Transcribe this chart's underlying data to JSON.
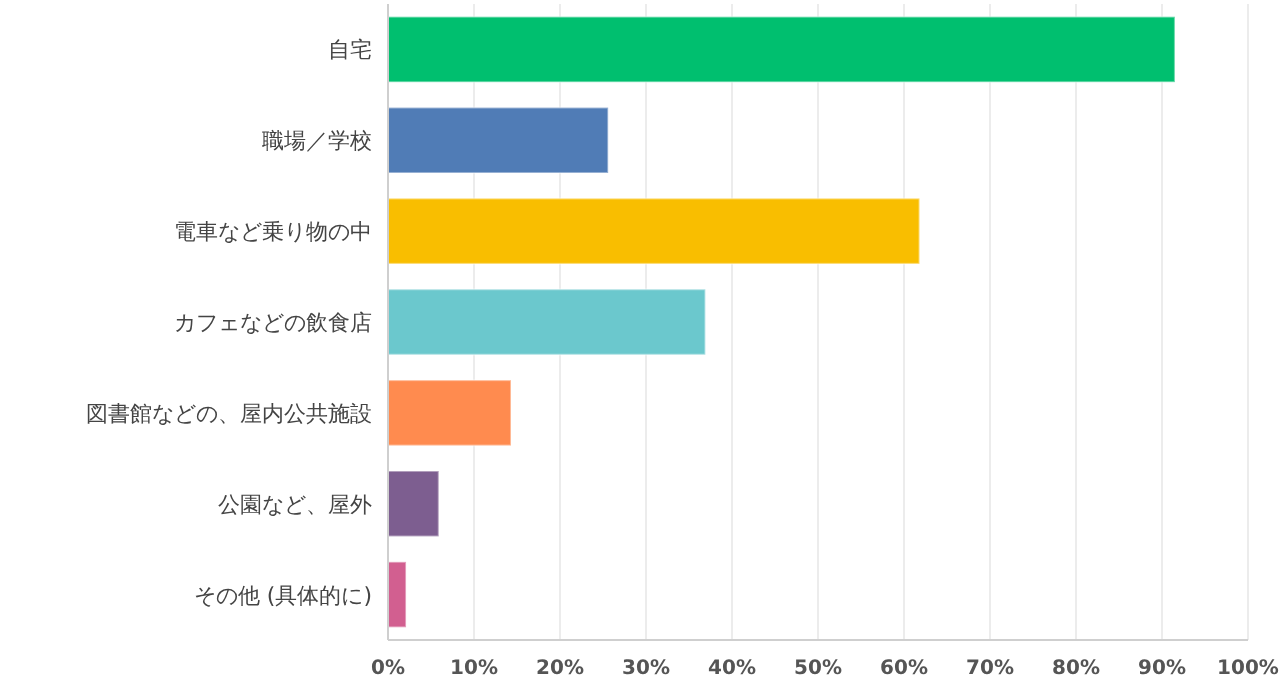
{
  "chart_data": {
    "type": "bar",
    "orientation": "horizontal",
    "categories": [
      "自宅",
      "職場／学校",
      "電車など乗り物の中",
      "カフェなどの飲食店",
      "図書館などの、屋内公共施設",
      "公園など、屋外",
      "その他 (具体的に)"
    ],
    "values": [
      91.5,
      25.6,
      61.8,
      36.9,
      14.3,
      5.9,
      2.1
    ],
    "colors": [
      "#00bf6f",
      "#507cb6",
      "#f9be00",
      "#6bc8cd",
      "#ff8b4f",
      "#7d5e90",
      "#d25f90"
    ],
    "xlim": [
      0,
      100
    ],
    "xticks": [
      {
        "value": 0,
        "label": "0%"
      },
      {
        "value": 10,
        "label": "10%"
      },
      {
        "value": 20,
        "label": "20%"
      },
      {
        "value": 30,
        "label": "30%"
      },
      {
        "value": 40,
        "label": "40%"
      },
      {
        "value": 50,
        "label": "50%"
      },
      {
        "value": 60,
        "label": "60%"
      },
      {
        "value": 70,
        "label": "70%"
      },
      {
        "value": 80,
        "label": "80%"
      },
      {
        "value": 90,
        "label": "90%"
      },
      {
        "value": 100,
        "label": "100%"
      }
    ],
    "grid": "x"
  }
}
